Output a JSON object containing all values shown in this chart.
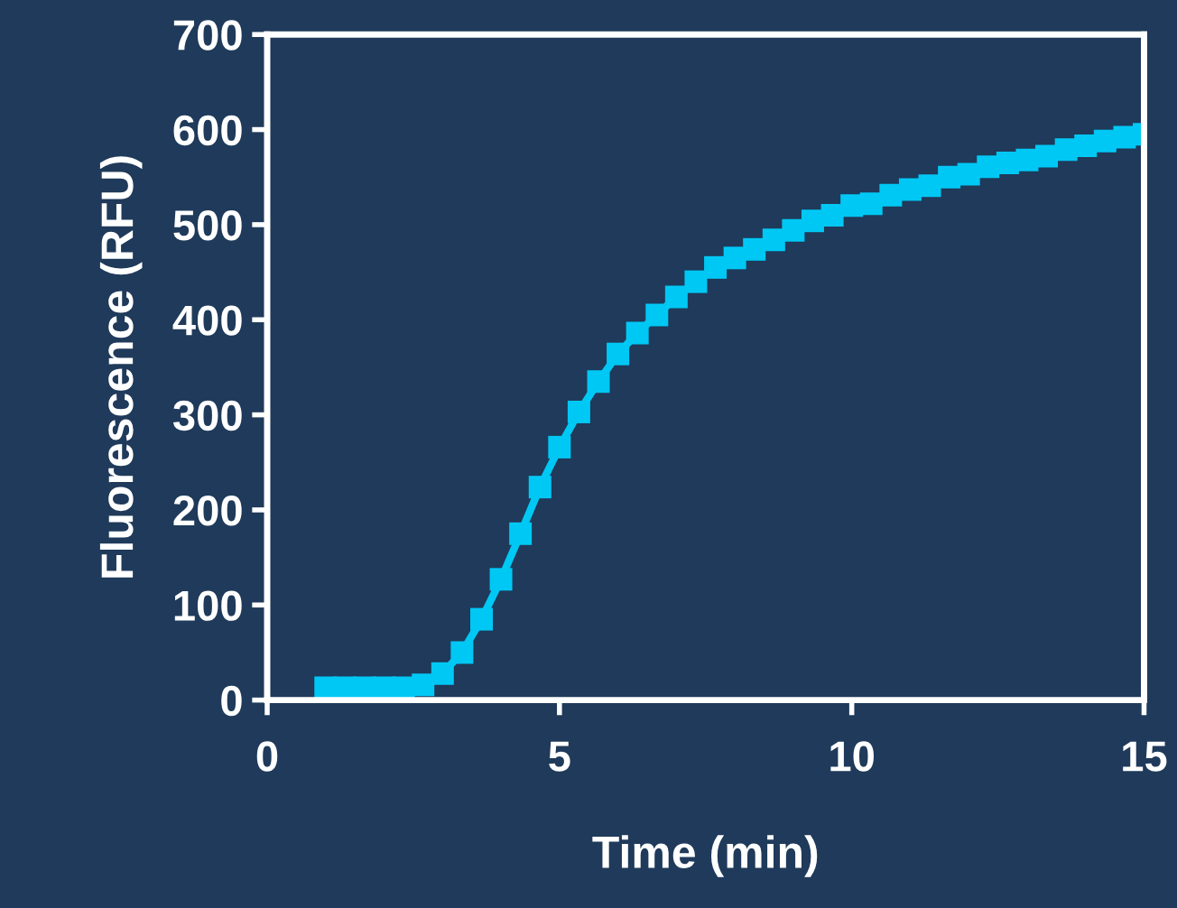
{
  "chart_data": {
    "type": "line",
    "xlabel": "Time (min)",
    "ylabel": "Fluorescence (RFU)",
    "x": [
      1.0,
      1.333,
      1.667,
      2.0,
      2.333,
      2.667,
      3.0,
      3.333,
      3.667,
      4.0,
      4.333,
      4.667,
      5.0,
      5.333,
      5.667,
      6.0,
      6.333,
      6.667,
      7.0,
      7.333,
      7.667,
      8.0,
      8.333,
      8.667,
      9.0,
      9.333,
      9.667,
      10.0,
      10.333,
      10.667,
      11.0,
      11.333,
      11.667,
      12.0,
      12.333,
      12.667,
      13.0,
      13.333,
      13.667,
      14.0,
      14.333,
      14.667,
      15.0
    ],
    "series": [
      {
        "color": "#00c8f5",
        "values": [
          13,
          13,
          13,
          13,
          13,
          16,
          28,
          50,
          85,
          127,
          175,
          224,
          266,
          303,
          335,
          364,
          386,
          405,
          424,
          440,
          455,
          465,
          474,
          484,
          494,
          504,
          510,
          520,
          522,
          531,
          537,
          541,
          550,
          553,
          561,
          565,
          568,
          572,
          579,
          583,
          588,
          592,
          595
        ]
      }
    ],
    "xlim": [
      0,
      15
    ],
    "xticks": [
      0,
      5,
      10,
      15
    ],
    "ylim": [
      0,
      700
    ],
    "yticks": [
      0,
      100,
      200,
      300,
      400,
      500,
      600,
      700
    ],
    "marker": "square",
    "line_style": "solid",
    "grid": false,
    "legend": false
  }
}
